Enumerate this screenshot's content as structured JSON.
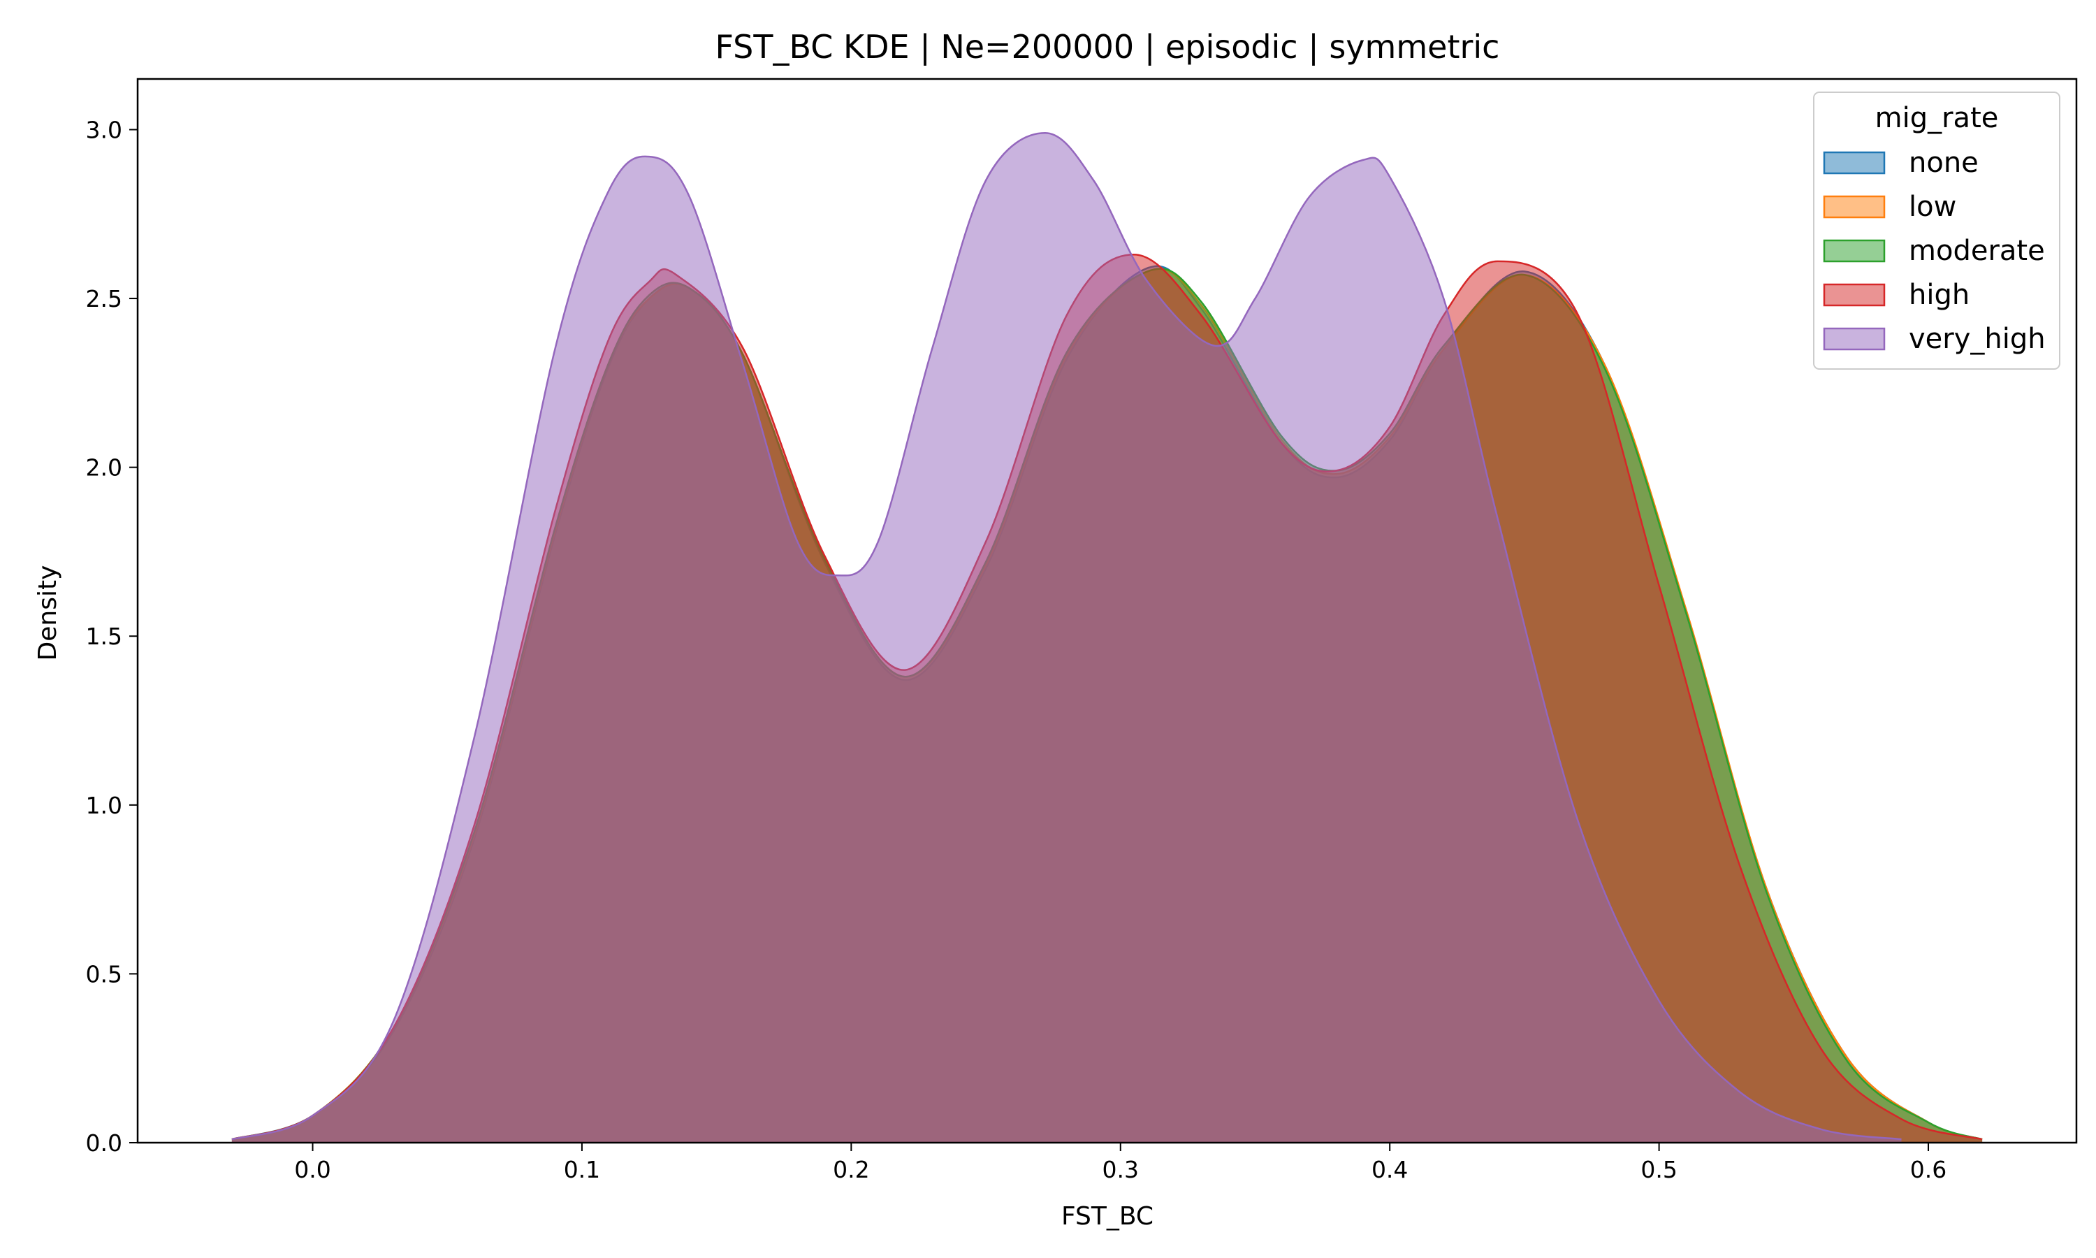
{
  "chart_data": {
    "type": "area",
    "title": "FST_BC KDE | Ne=200000 | episodic | symmetric",
    "xlabel": "FST_BC",
    "ylabel": "Density",
    "xlim": [
      -0.065,
      0.655
    ],
    "ylim": [
      0.0,
      3.15
    ],
    "x_ticks": [
      0.0,
      0.1,
      0.2,
      0.3,
      0.4,
      0.5,
      0.6
    ],
    "x_tick_labels": [
      "0.0",
      "0.1",
      "0.2",
      "0.3",
      "0.4",
      "0.5",
      "0.6"
    ],
    "y_ticks": [
      0.0,
      0.5,
      1.0,
      1.5,
      2.0,
      2.5,
      3.0
    ],
    "y_tick_labels": [
      "0.0",
      "0.5",
      "1.0",
      "1.5",
      "2.0",
      "2.5",
      "3.0"
    ],
    "grid": false,
    "legend_title": "mig_rate",
    "legend_position": "upper-right",
    "fill_alpha": 0.5,
    "series": [
      {
        "name": "none",
        "color": "#1f77b4",
        "x": [
          -0.03,
          0.0,
          0.03,
          0.06,
          0.09,
          0.11,
          0.125,
          0.14,
          0.16,
          0.19,
          0.22,
          0.25,
          0.28,
          0.31,
          0.33,
          0.36,
          0.38,
          0.4,
          0.42,
          0.45,
          0.48,
          0.51,
          0.54,
          0.57,
          0.6,
          0.62
        ],
        "y": [
          0.01,
          0.08,
          0.33,
          0.9,
          1.8,
          2.3,
          2.5,
          2.53,
          2.33,
          1.72,
          1.37,
          1.7,
          2.32,
          2.59,
          2.47,
          2.07,
          1.97,
          2.08,
          2.35,
          2.58,
          2.3,
          1.57,
          0.75,
          0.25,
          0.06,
          0.01
        ]
      },
      {
        "name": "low",
        "color": "#ff7f0e",
        "x": [
          -0.03,
          0.0,
          0.03,
          0.06,
          0.09,
          0.11,
          0.125,
          0.14,
          0.16,
          0.19,
          0.22,
          0.25,
          0.28,
          0.31,
          0.33,
          0.36,
          0.38,
          0.4,
          0.42,
          0.45,
          0.48,
          0.51,
          0.54,
          0.57,
          0.6,
          0.62
        ],
        "y": [
          0.01,
          0.08,
          0.34,
          0.91,
          1.81,
          2.31,
          2.5,
          2.53,
          2.33,
          1.73,
          1.38,
          1.71,
          2.33,
          2.58,
          2.48,
          2.08,
          1.98,
          2.09,
          2.35,
          2.57,
          2.3,
          1.58,
          0.75,
          0.25,
          0.06,
          0.01
        ]
      },
      {
        "name": "moderate",
        "color": "#2ca02c",
        "x": [
          -0.03,
          0.0,
          0.03,
          0.06,
          0.09,
          0.11,
          0.125,
          0.14,
          0.16,
          0.19,
          0.22,
          0.25,
          0.28,
          0.31,
          0.33,
          0.36,
          0.38,
          0.4,
          0.42,
          0.45,
          0.48,
          0.51,
          0.54,
          0.57,
          0.6,
          0.62
        ],
        "y": [
          0.01,
          0.08,
          0.34,
          0.92,
          1.82,
          2.31,
          2.51,
          2.53,
          2.33,
          1.73,
          1.38,
          1.72,
          2.34,
          2.58,
          2.49,
          2.09,
          1.99,
          2.1,
          2.36,
          2.57,
          2.29,
          1.57,
          0.74,
          0.24,
          0.06,
          0.01
        ]
      },
      {
        "name": "high",
        "color": "#d62728",
        "x": [
          -0.03,
          0.0,
          0.03,
          0.06,
          0.09,
          0.11,
          0.125,
          0.135,
          0.16,
          0.19,
          0.22,
          0.25,
          0.28,
          0.305,
          0.33,
          0.36,
          0.38,
          0.4,
          0.42,
          0.44,
          0.47,
          0.5,
          0.53,
          0.56,
          0.59,
          0.62
        ],
        "y": [
          0.01,
          0.08,
          0.34,
          0.94,
          1.87,
          2.38,
          2.55,
          2.57,
          2.35,
          1.74,
          1.4,
          1.78,
          2.45,
          2.63,
          2.45,
          2.07,
          1.99,
          2.12,
          2.45,
          2.61,
          2.45,
          1.65,
          0.82,
          0.28,
          0.07,
          0.01
        ]
      },
      {
        "name": "very_high",
        "color": "#9467bd",
        "x": [
          -0.03,
          0.0,
          0.03,
          0.06,
          0.09,
          0.11,
          0.125,
          0.14,
          0.16,
          0.18,
          0.195,
          0.21,
          0.23,
          0.25,
          0.272,
          0.29,
          0.31,
          0.335,
          0.35,
          0.37,
          0.39,
          0.4,
          0.42,
          0.44,
          0.47,
          0.5,
          0.53,
          0.56,
          0.59
        ],
        "y": [
          0.01,
          0.08,
          0.36,
          1.2,
          2.35,
          2.82,
          2.92,
          2.8,
          2.3,
          1.78,
          1.68,
          1.78,
          2.35,
          2.85,
          2.99,
          2.85,
          2.55,
          2.36,
          2.5,
          2.8,
          2.91,
          2.86,
          2.5,
          1.85,
          0.95,
          0.42,
          0.15,
          0.04,
          0.01
        ]
      }
    ]
  }
}
